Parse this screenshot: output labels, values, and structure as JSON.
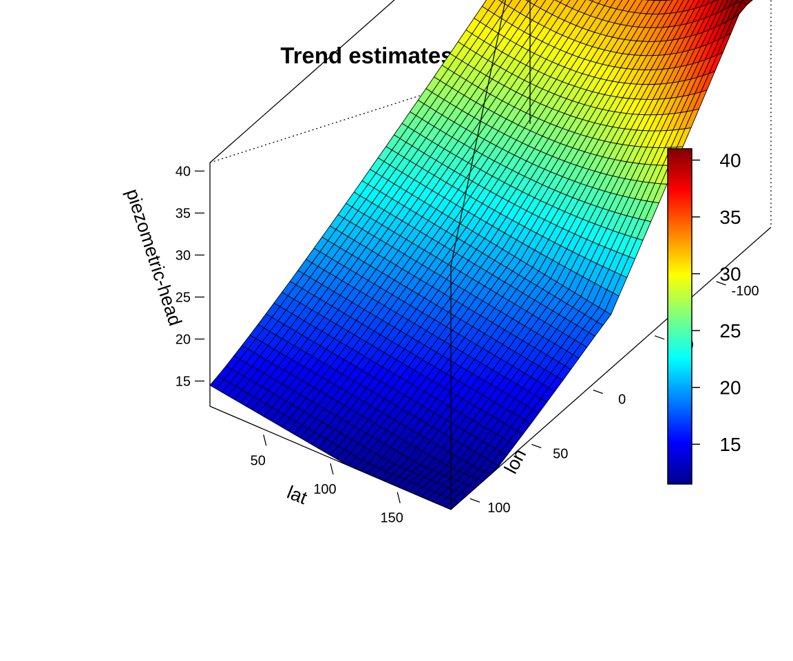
{
  "chart_data": {
    "type": "surface3d",
    "title": "Trend estimates",
    "xlabel": "lat",
    "ylabel": "lon",
    "zlabel": "piezometric-head",
    "x_ticks": [
      50,
      100,
      150
    ],
    "y_ticks": [
      -100,
      -50,
      0,
      50,
      100
    ],
    "z_ticks": [
      15,
      20,
      25,
      30,
      35,
      40
    ],
    "xlim": [
      10,
      190
    ],
    "ylim": [
      -150,
      110
    ],
    "zlim": [
      12,
      41
    ],
    "colorbar": {
      "ticks": [
        15,
        20,
        25,
        30,
        35,
        40
      ],
      "range": [
        11.5,
        41
      ],
      "palette": [
        "#00008f",
        "#0000ff",
        "#00ffff",
        "#ffff00",
        "#ff0000",
        "#800000"
      ]
    },
    "surface_description": "Trend surface of piezometric head over lat and lon; values rise from about 12 at low lat to about 41 at high lat and low lon."
  }
}
